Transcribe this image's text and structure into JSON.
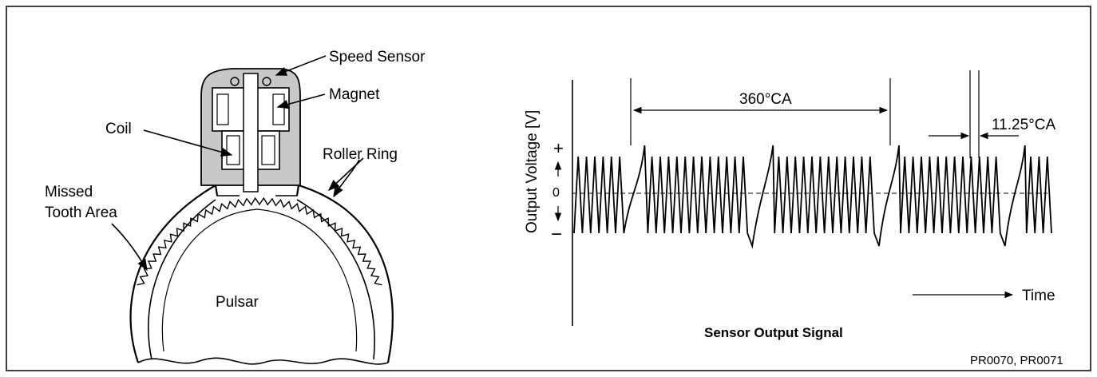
{
  "sensor_diagram": {
    "labels": {
      "speed_sensor": "Speed Sensor",
      "magnet": "Magnet",
      "coil": "Coil",
      "roller_ring": "Roller Ring",
      "missed_tooth_line1": "Missed",
      "missed_tooth_line2": "Tooth Area",
      "pulsar": "Pulsar"
    }
  },
  "signal_chart": {
    "title": "Sensor Output Signal",
    "ylabel": "Output Voltage [V]",
    "y_plus": "+",
    "y_zero": "0",
    "y_minus": "−",
    "dimension_360": "360°CA",
    "dimension_tooth": "11.25°CA",
    "time_label": "Time"
  },
  "figure_code": "PR0070, PR0071",
  "colors": {
    "line": "#000000",
    "sensor_body": "#c8c8c8",
    "background": "#ffffff"
  }
}
